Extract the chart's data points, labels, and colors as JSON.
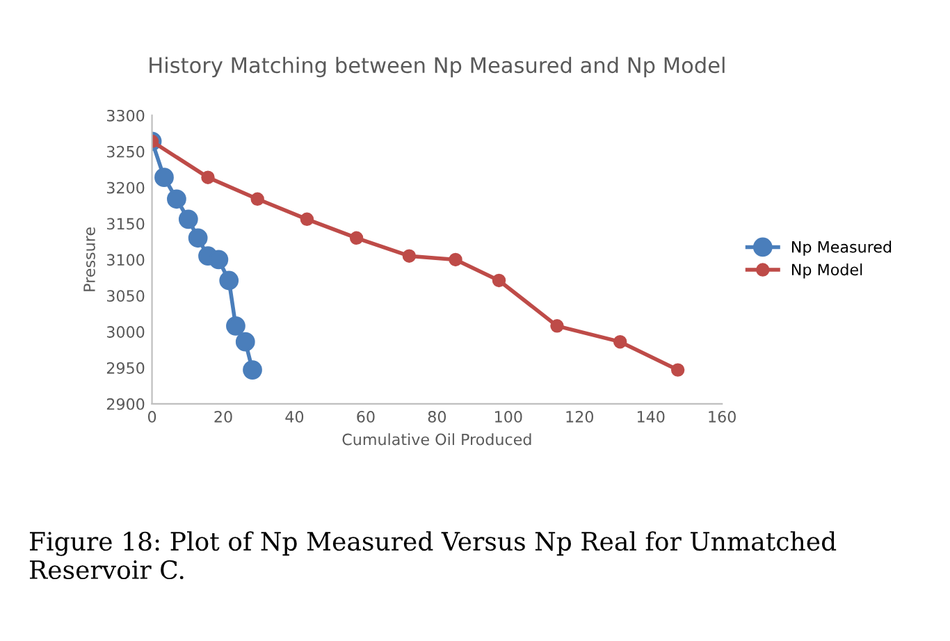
{
  "chart_data": {
    "type": "line",
    "title": "History Matching between Np Measured and Np Model",
    "xlabel": "Cumulative Oil Produced",
    "ylabel": "Pressure",
    "series": [
      {
        "name": "Np Measured",
        "color": "#4a7ebb",
        "x": [
          0,
          3.4,
          6.9,
          10.2,
          12.9,
          15.7,
          18.7,
          21.6,
          23.5,
          26.2,
          28.2
        ],
        "values": [
          3264,
          3214,
          3184,
          3156,
          3130,
          3105,
          3100,
          3071,
          3008,
          2986,
          2947
        ]
      },
      {
        "name": "Np Model",
        "color": "#be4b48",
        "x": [
          0,
          15.7,
          29.6,
          43.5,
          57.4,
          72.2,
          85.2,
          97.4,
          113.7,
          131.4,
          147.6
        ],
        "values": [
          3264,
          3214,
          3184,
          3156,
          3130,
          3105,
          3100,
          3071,
          3008,
          2986,
          2947
        ]
      }
    ],
    "xlim": [
      0,
      160
    ],
    "xticks": [
      0,
      20,
      40,
      60,
      80,
      100,
      120,
      140,
      160
    ],
    "ylim": [
      2900,
      3300
    ],
    "yticks": [
      2900,
      2950,
      3000,
      3050,
      3100,
      3150,
      3200,
      3250,
      3300
    ],
    "grid": false,
    "legend": "right",
    "marker": "circle",
    "line_style": "solid",
    "annotations": [
      "Figure 18: Plot of Np Measured Versus Np Real for Unmatched Reservoir C."
    ]
  }
}
